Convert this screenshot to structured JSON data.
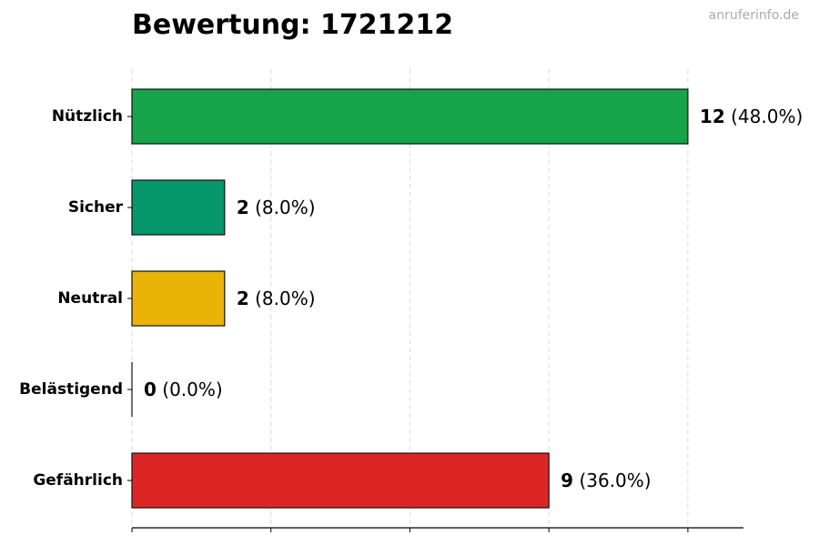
{
  "watermark": "anruferinfo.de",
  "chart_data": {
    "type": "bar",
    "orientation": "horizontal",
    "title": "Bewertung: 1721212",
    "categories": [
      "Nützlich",
      "Sicher",
      "Neutral",
      "Belästigend",
      "Gefährlich"
    ],
    "values": [
      12,
      2,
      2,
      0,
      9
    ],
    "percent_labels": [
      "(48.0%)",
      "(8.0%)",
      "(8.0%)",
      "(0.0%)",
      "(36.0%)"
    ],
    "colors": [
      "#16a34a",
      "#059669",
      "#eab308",
      "#ea580c",
      "#dc2626"
    ],
    "xlim": [
      0,
      13.2
    ],
    "grid": true,
    "xlabel": "",
    "ylabel": ""
  }
}
